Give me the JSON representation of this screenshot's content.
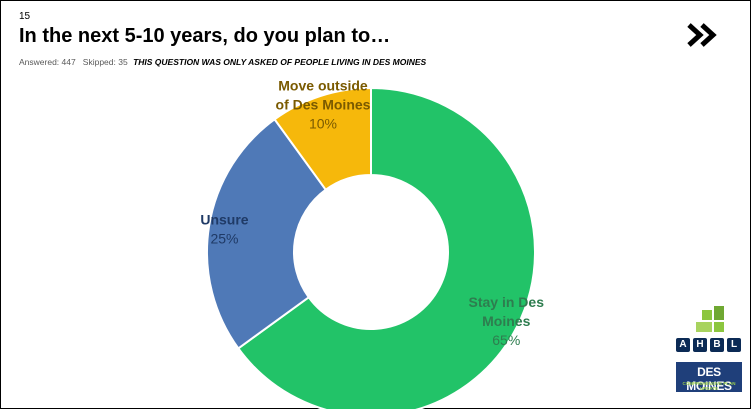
{
  "slide": {
    "number": "15",
    "title": "In the next 5-10 years, do you plan to…",
    "answered": "Answered: 447",
    "skipped": "Skipped: 35",
    "note": "THIS QUESTION WAS ONLY ASKED OF PEOPLE LIVING IN DES MOINES"
  },
  "nav": {
    "next_icon": "double-chevron-right-icon"
  },
  "logo": {
    "ahbl_letters": [
      "A",
      "H",
      "B",
      "L"
    ],
    "des_moines": "DES MOINES",
    "tagline": "COMPREHENSIVE PLAN UPDATE",
    "colors": {
      "ahbl": "#0b2a55",
      "green": "#8cc63f",
      "navy": "#1f3f7a"
    }
  },
  "chart_data": {
    "type": "pie",
    "donut": true,
    "categories": [
      "Stay in Des Moines",
      "Unsure",
      "Move outside of Des Moines"
    ],
    "values": [
      65,
      25,
      10
    ],
    "value_labels": [
      "65%",
      "25%",
      "10%"
    ],
    "label_lines": [
      [
        "Stay in Des",
        "Moines"
      ],
      [
        "Unsure"
      ],
      [
        "Move outside",
        "of Des Moines"
      ]
    ],
    "colors": [
      "#22c368",
      "#4f79b7",
      "#f6b80b"
    ],
    "title": "",
    "legend": "none"
  }
}
